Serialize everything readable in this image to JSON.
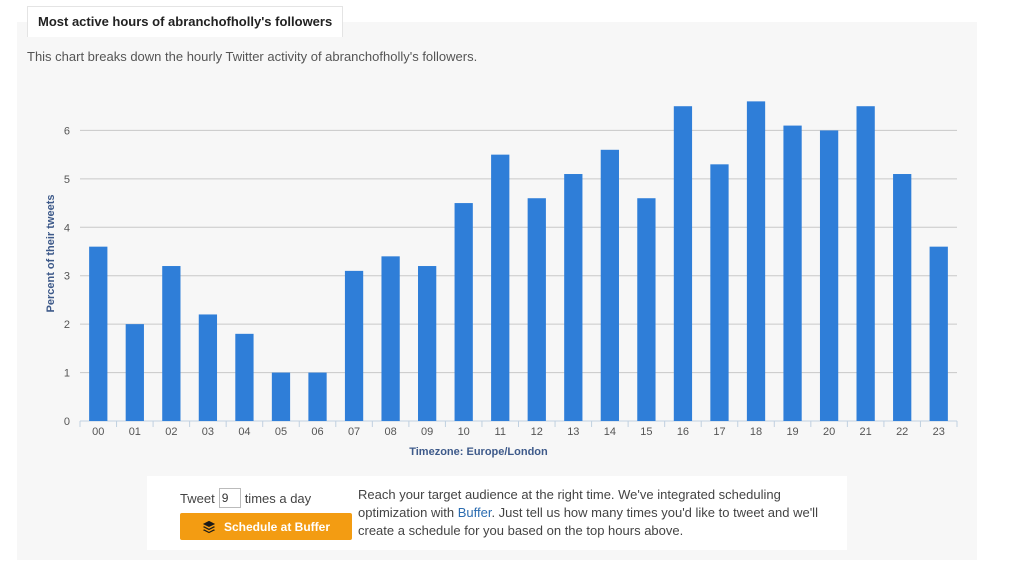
{
  "header": {
    "tab_title": "Most active hours of abranchofholly's followers",
    "subtitle": "This chart breaks down the hourly Twitter activity of abranchofholly's followers."
  },
  "chart_data": {
    "type": "bar",
    "categories": [
      "00",
      "01",
      "02",
      "03",
      "04",
      "05",
      "06",
      "07",
      "08",
      "09",
      "10",
      "11",
      "12",
      "13",
      "14",
      "15",
      "16",
      "17",
      "18",
      "19",
      "20",
      "21",
      "22",
      "23"
    ],
    "values": [
      3.6,
      2.0,
      3.2,
      2.2,
      1.8,
      1.0,
      1.0,
      3.1,
      3.4,
      3.2,
      4.5,
      5.5,
      4.6,
      5.1,
      5.6,
      4.6,
      6.5,
      5.3,
      6.6,
      6.1,
      6.0,
      6.5,
      5.1,
      3.6
    ],
    "yticks": [
      0,
      1,
      2,
      3,
      4,
      5,
      6
    ],
    "ylim": [
      0,
      7
    ],
    "ylabel": "Percent of their tweets",
    "xlabel": "Timezone: Europe/London",
    "grid": true,
    "bar_color": "#2f7ed8"
  },
  "scheduler": {
    "tweet_prefix": "Tweet",
    "tweet_count": "9",
    "tweet_suffix": "times a day",
    "button_label": "Schedule at Buffer",
    "button_icon": "layers-icon",
    "button_color": "#f39c12",
    "desc_before": "Reach your target audience at the right time. We've integrated scheduling optimization with ",
    "desc_link": "Buffer",
    "desc_after": ". Just tell us how many times you'd like to tweet and we'll create a schedule for you based on the top hours above."
  }
}
